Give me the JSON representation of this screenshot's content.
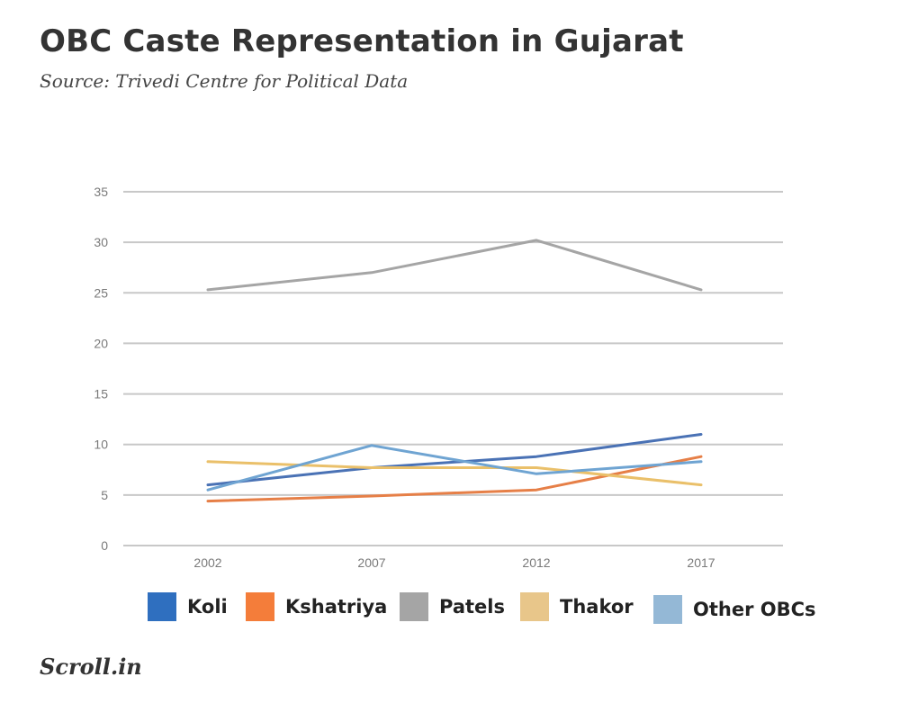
{
  "header": {
    "title": "OBC Caste Representation in Gujarat",
    "subtitle": "Source: Trivedi Centre for Political Data"
  },
  "chart_data": {
    "type": "line",
    "categories": [
      "2002",
      "2007",
      "2012",
      "2017"
    ],
    "series": [
      {
        "name": "Koli",
        "values": [
          6.0,
          7.7,
          8.8,
          11.0
        ],
        "color": "#4a72b5"
      },
      {
        "name": "Kshatriya",
        "values": [
          4.4,
          4.9,
          5.5,
          8.8
        ],
        "color": "#e67f47"
      },
      {
        "name": "Patels",
        "values": [
          25.3,
          27.0,
          30.2,
          25.3
        ],
        "color": "#a5a5a5"
      },
      {
        "name": "Thakor",
        "values": [
          8.3,
          7.7,
          7.7,
          6.0
        ],
        "color": "#eac06a"
      },
      {
        "name": "Other OBCs",
        "values": [
          5.5,
          9.9,
          7.1,
          8.3
        ],
        "color": "#6fa4d2"
      }
    ],
    "yticks": [
      0,
      5,
      10,
      15,
      20,
      25,
      30,
      35
    ],
    "ylim": [
      0,
      35
    ],
    "grid": true,
    "legend_position": "bottom"
  },
  "legend": {
    "items": [
      {
        "label": "Koli",
        "color": "#2f6fbf"
      },
      {
        "label": "Kshatriya",
        "color": "#f47d3a"
      },
      {
        "label": "Patels",
        "color": "#a5a5a5"
      },
      {
        "label": "Thakor",
        "color": "#e8c68a"
      },
      {
        "label": "Other OBCs",
        "color": "#94b8d6"
      }
    ]
  },
  "footer": {
    "logo_text": "Scroll.in"
  }
}
